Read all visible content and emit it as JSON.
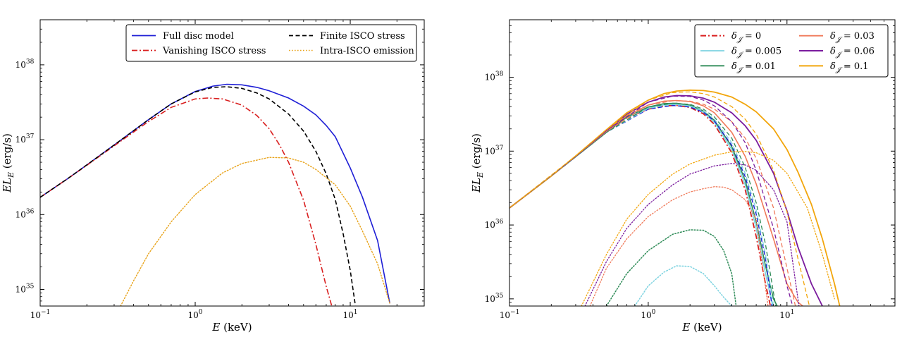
{
  "chart_data": [
    {
      "type": "line",
      "xlabel": "E (keV)",
      "ylabel": "EL_E (erg/s)",
      "xscale": "log",
      "yscale": "log",
      "xlim": [
        0.1,
        30
      ],
      "ylim": [
        6e+34,
        4e+38
      ],
      "xticks": [
        {
          "v": 0.1,
          "b": "10",
          "e": "−1"
        },
        {
          "v": 1,
          "b": "10",
          "e": "0"
        },
        {
          "v": 10,
          "b": "10",
          "e": "1"
        }
      ],
      "yticks": [
        {
          "v": 1e+35,
          "b": "10",
          "e": "35"
        },
        {
          "v": 1e+36,
          "b": "10",
          "e": "36"
        },
        {
          "v": 1e+37,
          "b": "10",
          "e": "37"
        },
        {
          "v": 1e+38,
          "b": "10",
          "e": "38"
        }
      ],
      "legend": {
        "placement": "top-right",
        "columns": 2
      },
      "series": [
        {
          "name": "Full disc model",
          "color": "#1f1fd6",
          "dash": "solid",
          "width": 1.6,
          "x": [
            0.1,
            0.15,
            0.2,
            0.3,
            0.5,
            0.7,
            1,
            1.3,
            1.6,
            2,
            2.5,
            3,
            4,
            5,
            6,
            7,
            8,
            10,
            12,
            15,
            18
          ],
          "y": [
            1.7e+36,
            3e+36,
            4.6e+36,
            8.5e+36,
            1.85e+37,
            3e+37,
            4.4e+37,
            5.2e+37,
            5.5e+37,
            5.4e+37,
            5e+37,
            4.5e+37,
            3.6e+37,
            2.8e+37,
            2.15e+37,
            1.55e+37,
            1.1e+37,
            4.2e+36,
            1.7e+36,
            4.5e+35,
            6.5e+34
          ]
        },
        {
          "name": "Vanishing ISCO stress",
          "color": "#d91f1f",
          "dash": "dashdot",
          "width": 1.6,
          "x": [
            0.1,
            0.15,
            0.2,
            0.3,
            0.5,
            0.7,
            1,
            1.2,
            1.5,
            2,
            2.5,
            3,
            3.5,
            4,
            5,
            6,
            7,
            7.6
          ],
          "y": [
            1.7e+36,
            3e+36,
            4.55e+36,
            8.3e+36,
            1.75e+37,
            2.7e+37,
            3.5e+37,
            3.6e+37,
            3.5e+37,
            2.9e+37,
            2.1e+37,
            1.4e+37,
            8.5e+36,
            5e+36,
            1.55e+36,
            4e+35,
            1.1e+35,
            6e+34
          ]
        },
        {
          "name": "Finite ISCO stress",
          "color": "#000000",
          "dash": "dashed",
          "width": 1.6,
          "x": [
            0.1,
            0.15,
            0.2,
            0.3,
            0.5,
            0.7,
            1,
            1.3,
            1.6,
            2,
            2.5,
            3,
            4,
            5,
            6,
            7,
            8,
            9,
            10,
            10.8
          ],
          "y": [
            1.7e+36,
            3e+36,
            4.6e+36,
            8.5e+36,
            1.85e+37,
            3e+37,
            4.35e+37,
            5e+37,
            5.1e+37,
            4.85e+37,
            4.2e+37,
            3.5e+37,
            2.2e+37,
            1.3e+37,
            7e+36,
            3.5e+36,
            1.6e+36,
            5.5e+35,
            1.8e+35,
            6e+34
          ]
        },
        {
          "name": "Intra-ISCO emission",
          "color": "#e8a31a",
          "dash": "dotted",
          "width": 1.4,
          "x": [
            0.33,
            0.4,
            0.5,
            0.7,
            1,
            1.5,
            2,
            3,
            4,
            5,
            6,
            8,
            10,
            12,
            15,
            18
          ],
          "y": [
            6e+34,
            1.3e+35,
            3e+35,
            8e+35,
            1.85e+36,
            3.6e+36,
            4.8e+36,
            5.8e+36,
            5.7e+36,
            5e+36,
            4e+36,
            2.5e+36,
            1.3e+36,
            6e+35,
            2.2e+35,
            6.5e+34
          ]
        }
      ]
    },
    {
      "type": "line",
      "xlabel": "E (keV)",
      "ylabel": "EL_E (erg/s)",
      "xscale": "log",
      "yscale": "log",
      "xlim": [
        0.1,
        60
      ],
      "ylim": [
        8e+34,
        6e+38
      ],
      "xticks": [
        {
          "v": 0.1,
          "b": "10",
          "e": "−1"
        },
        {
          "v": 1,
          "b": "10",
          "e": "0"
        },
        {
          "v": 10,
          "b": "10",
          "e": "1"
        }
      ],
      "yticks": [
        {
          "v": 1e+35,
          "b": "10",
          "e": "35"
        },
        {
          "v": 1e+36,
          "b": "10",
          "e": "36"
        },
        {
          "v": 1e+37,
          "b": "10",
          "e": "37"
        },
        {
          "v": 1e+38,
          "b": "10",
          "e": "38"
        }
      ],
      "legend": {
        "placement": "top-right",
        "columns": 2
      },
      "series": [
        {
          "name": "δ𝒥 = 0",
          "label_sub": "𝒥",
          "label_val": "0",
          "color": "#d91f1f",
          "dash": "dashdot",
          "width": 1.8,
          "legend": true,
          "x": [
            0.1,
            0.2,
            0.3,
            0.5,
            0.7,
            1,
            1.3,
            1.6,
            2,
            2.5,
            3,
            4,
            5,
            6,
            7,
            7.6
          ],
          "y": [
            1.7e+36,
            4.6e+36,
            8.4e+36,
            1.8e+37,
            2.8e+37,
            3.7e+37,
            4.1e+37,
            4.15e+37,
            3.9e+37,
            3.2e+37,
            2.3e+37,
            9.5e+36,
            3e+36,
            7e+35,
            1.6e+35,
            8e+34
          ]
        },
        {
          "name": "δ𝒥 = 0.005",
          "label_sub": "𝒥",
          "label_val": "0.005",
          "color": "#7dd3e0",
          "dash": "solid",
          "width": 1.6,
          "legend": true,
          "x": [
            0.1,
            0.2,
            0.3,
            0.5,
            0.7,
            1,
            1.3,
            1.6,
            2,
            2.5,
            3,
            4,
            5,
            6,
            7,
            7.9
          ],
          "y": [
            1.7e+36,
            4.6e+36,
            8.4e+36,
            1.8e+37,
            2.85e+37,
            3.8e+37,
            4.25e+37,
            4.3e+37,
            4.05e+37,
            3.35e+37,
            2.45e+37,
            1.05e+37,
            3.5e+36,
            9e+35,
            2.2e+35,
            8e+34
          ]
        },
        {
          "name": "δ𝒥 = 0.01",
          "label_sub": "𝒥",
          "label_val": "0.01",
          "color": "#2e8b57",
          "dash": "solid",
          "width": 1.6,
          "legend": true,
          "x": [
            0.1,
            0.2,
            0.3,
            0.5,
            0.7,
            1,
            1.3,
            1.6,
            2,
            2.5,
            3,
            4,
            5,
            6,
            7,
            8,
            8.5
          ],
          "y": [
            1.7e+36,
            4.6e+36,
            8.4e+36,
            1.8e+37,
            2.9e+37,
            3.95e+37,
            4.4e+37,
            4.45e+37,
            4.2e+37,
            3.5e+37,
            2.6e+37,
            1.15e+37,
            4e+36,
            1.1e+36,
            2.8e+35,
            1e+35,
            8e+34
          ]
        },
        {
          "name": "δ𝒥 = 0.03",
          "label_sub": "𝒥",
          "label_val": "0.03",
          "color": "#f07a5a",
          "dash": "solid",
          "width": 1.6,
          "legend": true,
          "x": [
            0.1,
            0.2,
            0.3,
            0.5,
            0.7,
            1,
            1.3,
            1.6,
            2,
            2.5,
            3,
            4,
            5,
            6,
            8,
            10,
            12,
            13
          ],
          "y": [
            1.7e+36,
            4.6e+36,
            8.5e+36,
            1.85e+37,
            3e+37,
            4.2e+37,
            4.75e+37,
            4.85e+37,
            4.7e+37,
            4.1e+37,
            3.3e+37,
            1.8e+37,
            8.5e+36,
            3.6e+36,
            6.5e+35,
            1.6e+35,
            9e+34,
            8e+34
          ]
        },
        {
          "name": "δ𝒥 = 0.06",
          "label_sub": "𝒥",
          "label_val": "0.06",
          "color": "#7b1c9e",
          "dash": "solid",
          "width": 1.8,
          "legend": true,
          "x": [
            0.1,
            0.2,
            0.3,
            0.5,
            0.7,
            1,
            1.3,
            1.6,
            2,
            2.5,
            3,
            4,
            5,
            6,
            8,
            10,
            12,
            15,
            18
          ],
          "y": [
            1.7e+36,
            4.6e+36,
            8.5e+36,
            1.9e+37,
            3.15e+37,
            4.6e+37,
            5.4e+37,
            5.65e+37,
            5.6e+37,
            5.2e+37,
            4.6e+37,
            3.3e+37,
            2.2e+37,
            1.4e+37,
            5e+36,
            1.55e+36,
            5e+35,
            1.6e+35,
            8e+34
          ]
        },
        {
          "name": "δ𝒥 = 0.1",
          "label_sub": "𝒥",
          "label_val": "0.1",
          "color": "#f2a60d",
          "dash": "solid",
          "width": 1.8,
          "legend": true,
          "x": [
            0.1,
            0.2,
            0.3,
            0.5,
            0.7,
            1,
            1.3,
            1.6,
            2,
            2.5,
            3,
            4,
            5,
            6,
            8,
            10,
            12,
            15,
            18,
            22,
            24
          ],
          "y": [
            1.7e+36,
            4.6e+36,
            8.6e+36,
            1.95e+37,
            3.3e+37,
            4.9e+37,
            6e+37,
            6.5e+37,
            6.7e+37,
            6.6e+37,
            6.3e+37,
            5.4e+37,
            4.3e+37,
            3.4e+37,
            2e+37,
            1.05e+37,
            5.2e+36,
            1.9e+36,
            6.5e+35,
            1.6e+35,
            8e+34
          ]
        },
        {
          "name": "",
          "color": "#1f1fd6",
          "dash": "dashed",
          "width": 1.4,
          "legend": false,
          "x": [
            0.1,
            0.3,
            0.5,
            1,
            1.5,
            2,
            2.5,
            3,
            4,
            5,
            6,
            7,
            7.8
          ],
          "y": [
            1.7e+36,
            8.4e+36,
            1.8e+37,
            3.7e+37,
            4.15e+37,
            3.95e+37,
            3.35e+37,
            2.55e+37,
            1.2e+37,
            4.5e+36,
            1.4e+36,
            3.5e+35,
            8e+34
          ]
        },
        {
          "name": "",
          "color": "#7dd3e0",
          "dash": "dashed",
          "width": 1.3,
          "legend": false,
          "x": [
            0.1,
            0.3,
            0.5,
            1,
            1.5,
            2,
            2.5,
            3,
            4,
            5,
            6,
            7,
            8
          ],
          "y": [
            1.7e+36,
            8.4e+36,
            1.8e+37,
            3.8e+37,
            4.3e+37,
            4.1e+37,
            3.5e+37,
            2.7e+37,
            1.3e+37,
            5e+36,
            1.6e+36,
            4e+35,
            8e+34
          ]
        },
        {
          "name": "",
          "color": "#2e8b57",
          "dash": "dashed",
          "width": 1.3,
          "legend": false,
          "x": [
            0.1,
            0.3,
            0.5,
            1,
            1.5,
            2,
            2.5,
            3,
            4,
            5,
            6,
            7,
            8,
            8.3
          ],
          "y": [
            1.7e+36,
            8.4e+36,
            1.8e+37,
            3.95e+37,
            4.45e+37,
            4.3e+37,
            3.7e+37,
            2.9e+37,
            1.5e+37,
            6e+36,
            2e+36,
            5.5e+35,
            1.2e+35,
            8e+34
          ]
        },
        {
          "name": "",
          "color": "#f07a5a",
          "dash": "dashed",
          "width": 1.3,
          "legend": false,
          "x": [
            0.1,
            0.3,
            0.5,
            1,
            1.5,
            2,
            2.5,
            3,
            4,
            5,
            6,
            8,
            10,
            11.5
          ],
          "y": [
            1.7e+36,
            8.5e+36,
            1.85e+37,
            4.2e+37,
            4.8e+37,
            4.75e+37,
            4.3e+37,
            3.7e+37,
            2.5e+37,
            1.5e+37,
            8e+36,
            1.7e+36,
            2.6e+35,
            8e+34
          ]
        },
        {
          "name": "",
          "color": "#7b1c9e",
          "dash": "dashed",
          "width": 1.3,
          "legend": false,
          "x": [
            0.1,
            0.3,
            0.5,
            1,
            1.5,
            2,
            2.5,
            3,
            4,
            5,
            6,
            8,
            10,
            11
          ],
          "y": [
            1.7e+36,
            8.5e+36,
            1.9e+37,
            4.6e+37,
            5.55e+37,
            5.5e+37,
            4.9e+37,
            4.1e+37,
            2.5e+37,
            1.3e+37,
            5.5e+36,
            9e+35,
            1.5e+35,
            8e+34
          ]
        },
        {
          "name": "",
          "color": "#f2a60d",
          "dash": "dashed",
          "width": 1.3,
          "legend": false,
          "x": [
            0.1,
            0.3,
            0.5,
            1,
            1.5,
            2,
            2.5,
            3,
            4,
            5,
            6,
            8,
            10,
            12,
            14.5
          ],
          "y": [
            1.7e+36,
            8.6e+36,
            1.95e+37,
            4.9e+37,
            6.2e+37,
            6.35e+37,
            6e+37,
            5.4e+37,
            4e+37,
            2.7e+37,
            1.7e+37,
            5.5e+36,
            1.5e+36,
            3.5e+35,
            8e+34
          ]
        },
        {
          "name": "",
          "color": "#7dd3e0",
          "dash": "dotted",
          "width": 1.5,
          "legend": false,
          "x": [
            0.8,
            1,
            1.3,
            1.6,
            2,
            2.5,
            3,
            3.5,
            4
          ],
          "y": [
            8e+34,
            1.5e+35,
            2.3e+35,
            2.8e+35,
            2.75e+35,
            2.2e+35,
            1.5e+35,
            1.05e+35,
            8e+34
          ]
        },
        {
          "name": "",
          "color": "#2e8b57",
          "dash": "dotted",
          "width": 1.5,
          "legend": false,
          "x": [
            0.5,
            0.7,
            1,
            1.5,
            2,
            2.5,
            3,
            3.5,
            4,
            4.3
          ],
          "y": [
            8e+34,
            2.2e+35,
            4.5e+35,
            7.5e+35,
            8.6e+35,
            8.5e+35,
            7e+35,
            4.5e+35,
            2.2e+35,
            8e+34
          ]
        },
        {
          "name": "",
          "color": "#f07a5a",
          "dash": "dotted",
          "width": 1.3,
          "legend": false,
          "x": [
            0.38,
            0.5,
            0.7,
            1,
            1.5,
            2,
            2.5,
            3,
            3.5,
            4,
            5,
            6,
            7.3
          ],
          "y": [
            8e+34,
            2.6e+35,
            6.5e+35,
            1.3e+36,
            2.2e+36,
            2.8e+36,
            3.1e+36,
            3.3e+36,
            3.25e+36,
            3e+36,
            2.2e+36,
            1.2e+36,
            8e+34
          ]
        },
        {
          "name": "",
          "color": "#7b1c9e",
          "dash": "dotted",
          "width": 1.3,
          "legend": false,
          "x": [
            0.35,
            0.5,
            0.7,
            1,
            1.5,
            2,
            3,
            4,
            5,
            6,
            8,
            10,
            12.2
          ],
          "y": [
            8e+34,
            3.2e+35,
            9e+35,
            1.9e+36,
            3.5e+36,
            4.9e+36,
            6.3e+36,
            6.8e+36,
            6.5e+36,
            5.5e+36,
            3e+36,
            1.1e+36,
            8e+34
          ]
        },
        {
          "name": "",
          "color": "#f2a60d",
          "dash": "dotted",
          "width": 1.3,
          "legend": false,
          "x": [
            0.33,
            0.5,
            0.7,
            1,
            1.5,
            2,
            3,
            4,
            5,
            6,
            8,
            10,
            14,
            18,
            22
          ],
          "y": [
            8e+34,
            4e+35,
            1.2e+36,
            2.6e+36,
            4.9e+36,
            6.7e+36,
            8.8e+36,
            9.8e+36,
            9.9e+36,
            9.5e+36,
            7.5e+36,
            5e+36,
            1.7e+36,
            4e+35,
            1e+35
          ]
        }
      ]
    }
  ]
}
